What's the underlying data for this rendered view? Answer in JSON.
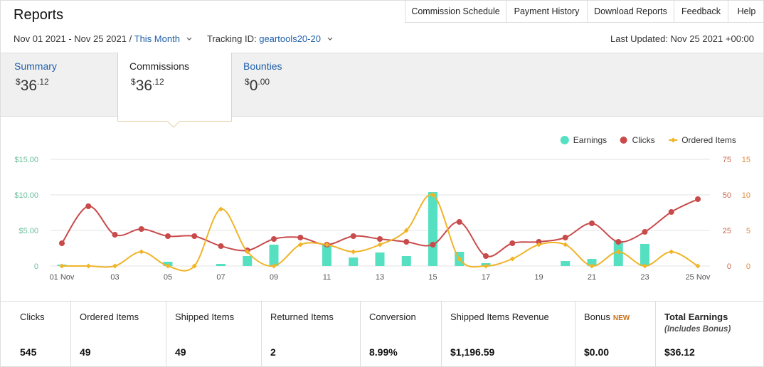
{
  "header": {
    "title": "Reports",
    "nav": [
      "Commission Schedule",
      "Payment History",
      "Download Reports",
      "Feedback",
      "Help"
    ]
  },
  "filters": {
    "date_range": "Nov 01 2021 - Nov 25 2021",
    "separator": "/",
    "period": "This Month",
    "tracking_label": "Tracking ID:",
    "tracking_id": "geartools20-20",
    "last_updated": "Last Updated: Nov 25 2021 +00:00"
  },
  "tabs": [
    {
      "label": "Summary",
      "currency": "$",
      "whole": "36",
      "cents": ".12"
    },
    {
      "label": "Commissions",
      "currency": "$",
      "whole": "36",
      "cents": ".12"
    },
    {
      "label": "Bounties",
      "currency": "$",
      "whole": "0",
      "cents": ".00"
    }
  ],
  "chart_data": {
    "type": "combo",
    "categories": [
      "01 Nov",
      null,
      "03",
      null,
      "05",
      null,
      "07",
      null,
      "09",
      null,
      "11",
      null,
      "13",
      null,
      "15",
      null,
      "17",
      null,
      "19",
      null,
      "21",
      null,
      "23",
      null,
      "25 Nov"
    ],
    "series": [
      {
        "name": "Earnings",
        "type": "bar",
        "axis": "y",
        "color": "#55e0c2",
        "values": [
          0.2,
          0,
          0,
          0,
          0.6,
          0,
          0.3,
          1.4,
          3.0,
          0,
          3.1,
          1.2,
          1.9,
          1.4,
          10.4,
          2.0,
          0.4,
          0,
          0,
          0.7,
          1.0,
          3.5,
          3.1,
          0,
          0
        ]
      },
      {
        "name": "Clicks",
        "type": "line",
        "marker": "circle",
        "axis": "y2",
        "color": "#c94a4a",
        "values": [
          16,
          42,
          22,
          26,
          21,
          21,
          14,
          11,
          19,
          20,
          15,
          21,
          19,
          17,
          15,
          31,
          7,
          16,
          17,
          20,
          30,
          17,
          24,
          38,
          47
        ]
      },
      {
        "name": "Ordered Items",
        "type": "line",
        "marker": "diamond",
        "axis": "y3",
        "color": "#f0b429",
        "values": [
          0,
          0,
          0,
          2,
          0,
          0,
          8,
          2,
          0,
          3,
          3,
          2,
          3,
          5,
          10,
          1,
          0,
          1,
          3,
          3,
          0,
          2,
          0,
          2,
          0
        ]
      }
    ],
    "ylim": [
      0,
      15
    ],
    "yticks": [
      0,
      {
        "value": 5,
        "label": "$5.00"
      },
      {
        "value": 10,
        "label": "$10.00"
      },
      {
        "value": 15,
        "label": "$15.00"
      }
    ],
    "y2lim": [
      0,
      75
    ],
    "y2ticks": [
      0,
      25,
      50,
      75
    ],
    "y3lim": [
      0,
      15
    ],
    "y3ticks": [
      0,
      5,
      10,
      15
    ],
    "grid": true,
    "legend": "top-right"
  },
  "stats": [
    {
      "label": "Clicks",
      "value": "545"
    },
    {
      "label": "Ordered Items",
      "value": "49"
    },
    {
      "label": "Shipped Items",
      "value": "49"
    },
    {
      "label": "Returned Items",
      "value": "2"
    },
    {
      "label": "Conversion",
      "value": "8.99%"
    },
    {
      "label": "Shipped Items Revenue",
      "value": "$1,196.59"
    },
    {
      "label": "Bonus",
      "badge": "NEW",
      "value": "$0.00"
    },
    {
      "label": "Total Earnings",
      "note": "(Includes Bonus)",
      "value": "$36.12"
    }
  ]
}
